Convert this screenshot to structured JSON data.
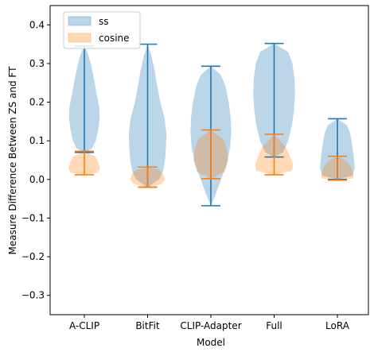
{
  "chart_data": {
    "type": "violin",
    "xlabel": "Model",
    "ylabel": "Measure Difference Between ZS and FT",
    "categories": [
      "A-CLIP",
      "BitFit",
      "CLIP-Adapter",
      "Full",
      "LoRA"
    ],
    "ylim": [
      -0.35,
      0.45
    ],
    "yticks": [
      "−0.3",
      "−0.2",
      "−0.1",
      "0.0",
      "0.1",
      "0.2",
      "0.3",
      "0.4"
    ],
    "ytick_values": [
      -0.3,
      -0.2,
      -0.1,
      0.0,
      0.1,
      0.2,
      0.3,
      0.4
    ],
    "grid": false,
    "legend_position": "upper-left",
    "series": [
      {
        "name": "ss",
        "fill": "#1f77b4",
        "line": "#1f77b4",
        "violins": [
          {
            "min": 0.07,
            "max": 0.345,
            "profile": [
              [
                0.07,
                0.0
              ],
              [
                0.08,
                0.3
              ],
              [
                0.1,
                0.45
              ],
              [
                0.13,
                0.55
              ],
              [
                0.16,
                0.6
              ],
              [
                0.19,
                0.58
              ],
              [
                0.22,
                0.48
              ],
              [
                0.26,
                0.38
              ],
              [
                0.3,
                0.25
              ],
              [
                0.33,
                0.12
              ],
              [
                0.345,
                0.0
              ]
            ]
          },
          {
            "min": -0.02,
            "max": 0.35,
            "profile": [
              [
                -0.02,
                0.0
              ],
              [
                0.0,
                0.45
              ],
              [
                0.02,
                0.6
              ],
              [
                0.05,
                0.68
              ],
              [
                0.08,
                0.72
              ],
              [
                0.12,
                0.74
              ],
              [
                0.16,
                0.66
              ],
              [
                0.2,
                0.5
              ],
              [
                0.24,
                0.38
              ],
              [
                0.28,
                0.28
              ],
              [
                0.32,
                0.15
              ],
              [
                0.35,
                0.0
              ]
            ]
          },
          {
            "min": -0.068,
            "max": 0.293,
            "profile": [
              [
                -0.068,
                0.0
              ],
              [
                -0.04,
                0.18
              ],
              [
                0.0,
                0.4
              ],
              [
                0.04,
                0.62
              ],
              [
                0.08,
                0.75
              ],
              [
                0.12,
                0.8
              ],
              [
                0.16,
                0.78
              ],
              [
                0.2,
                0.7
              ],
              [
                0.24,
                0.58
              ],
              [
                0.27,
                0.4
              ],
              [
                0.293,
                0.0
              ]
            ]
          },
          {
            "min": 0.058,
            "max": 0.352,
            "profile": [
              [
                0.058,
                0.0
              ],
              [
                0.07,
                0.35
              ],
              [
                0.1,
                0.55
              ],
              [
                0.14,
                0.7
              ],
              [
                0.18,
                0.78
              ],
              [
                0.22,
                0.82
              ],
              [
                0.26,
                0.8
              ],
              [
                0.3,
                0.72
              ],
              [
                0.33,
                0.55
              ],
              [
                0.352,
                0.0
              ]
            ]
          },
          {
            "min": 0.0,
            "max": 0.157,
            "profile": [
              [
                0.0,
                0.0
              ],
              [
                0.01,
                0.6
              ],
              [
                0.03,
                0.68
              ],
              [
                0.06,
                0.64
              ],
              [
                0.09,
                0.58
              ],
              [
                0.12,
                0.5
              ],
              [
                0.14,
                0.38
              ],
              [
                0.157,
                0.0
              ]
            ]
          }
        ]
      },
      {
        "name": "cosine",
        "fill": "#ff7f0e",
        "line": "#ff7f0e",
        "violins": [
          {
            "min": 0.012,
            "max": 0.073,
            "profile": [
              [
                0.012,
                0.0
              ],
              [
                0.018,
                0.55
              ],
              [
                0.03,
                0.62
              ],
              [
                0.045,
                0.55
              ],
              [
                0.06,
                0.42
              ],
              [
                0.073,
                0.0
              ]
            ]
          },
          {
            "min": -0.02,
            "max": 0.032,
            "profile": [
              [
                -0.02,
                0.0
              ],
              [
                -0.012,
                0.55
              ],
              [
                0.0,
                0.68
              ],
              [
                0.012,
                0.62
              ],
              [
                0.024,
                0.48
              ],
              [
                0.032,
                0.0
              ]
            ]
          },
          {
            "min": 0.002,
            "max": 0.128,
            "profile": [
              [
                0.002,
                0.0
              ],
              [
                0.02,
                0.55
              ],
              [
                0.05,
                0.68
              ],
              [
                0.08,
                0.62
              ],
              [
                0.105,
                0.48
              ],
              [
                0.128,
                0.0
              ]
            ]
          },
          {
            "min": 0.012,
            "max": 0.117,
            "profile": [
              [
                0.012,
                0.0
              ],
              [
                0.022,
                0.7
              ],
              [
                0.04,
                0.75
              ],
              [
                0.06,
                0.62
              ],
              [
                0.085,
                0.45
              ],
              [
                0.117,
                0.0
              ]
            ]
          },
          {
            "min": -0.002,
            "max": 0.06,
            "profile": [
              [
                -0.002,
                0.0
              ],
              [
                0.002,
                0.62
              ],
              [
                0.015,
                0.62
              ],
              [
                0.03,
                0.55
              ],
              [
                0.045,
                0.4
              ],
              [
                0.06,
                0.0
              ]
            ]
          }
        ]
      }
    ]
  }
}
